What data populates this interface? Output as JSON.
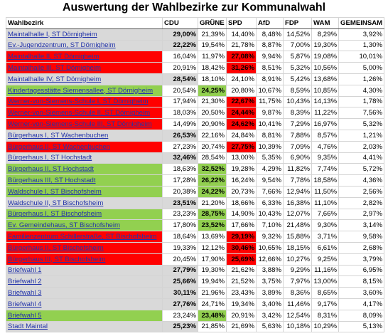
{
  "title": "Auswertung der Wahlbezirke zur Kommunalwahl",
  "table": {
    "columns": [
      "Wahlbezirk",
      "CDU",
      "GRÜNE",
      "SPD",
      "AfD",
      "FDP",
      "WAM",
      "GEMEINSAM"
    ],
    "party_colors": {
      "CDU": "#d9d9d9",
      "GRÜNE": "#92d050",
      "SPD": "#ff0000"
    },
    "rows": [
      [
        "Maintalhalle I, ST Dörnigheim",
        "29,00%",
        "21,39%",
        "14,40%",
        "8,48%",
        "14,52%",
        "8,29%",
        "3,92%"
      ],
      [
        "Ev.-Jugendzentrum, ST Dörnigheim",
        "22,22%",
        "19,54%",
        "21,78%",
        "8,87%",
        "7,00%",
        "19,30%",
        "1,30%"
      ],
      [
        "Maintalhalle II, ST Dörnigheim",
        "16,04%",
        "11,97%",
        "27,08%",
        "9,94%",
        "5,87%",
        "19,08%",
        "10,01%"
      ],
      [
        "Maintalhalle III, ST Dörnigheim",
        "20,91%",
        "18,42%",
        "31,26%",
        "8,51%",
        "5,32%",
        "10,56%",
        "5,00%"
      ],
      [
        "Maintalhalle IV, ST Dörnigheim",
        "28,54%",
        "18,10%",
        "24,10%",
        "8,91%",
        "5,42%",
        "13,68%",
        "1,26%"
      ],
      [
        "Kindertagesstätte Siemensallee, ST Dörnigheim",
        "20,54%",
        "24,25%",
        "20,80%",
        "10,67%",
        "8,59%",
        "10,85%",
        "4,30%"
      ],
      [
        "Werner-von-Siemens-Schule I, ST Dörnigheim",
        "17,94%",
        "21,30%",
        "22,67%",
        "11,75%",
        "10,43%",
        "14,13%",
        "1,78%"
      ],
      [
        "Werner-von-Siemens-Schule II, ST Dörnigheim",
        "18,03%",
        "20,50%",
        "24,44%",
        "9,87%",
        "8,39%",
        "11,22%",
        "7,56%"
      ],
      [
        "Werner-von-Siemens-Schule III, ST Dörnigheim",
        "14,49%",
        "20,90%",
        "24,62%",
        "10,41%",
        "7,29%",
        "16,97%",
        "5,32%"
      ],
      [
        "Bürgerhaus I, ST Wachenbuchen",
        "26,53%",
        "22,16%",
        "24,84%",
        "8,81%",
        "7,88%",
        "8,57%",
        "1,21%"
      ],
      [
        "Bürgerhaus II, ST Wachenbuchen",
        "27,23%",
        "20,74%",
        "27,75%",
        "10,39%",
        "7,09%",
        "4,76%",
        "2,03%"
      ],
      [
        "Bürgerhaus I, ST Hochstadt",
        "32,46%",
        "28,54%",
        "13,00%",
        "5,35%",
        "6,90%",
        "9,35%",
        "4,41%"
      ],
      [
        "Bürgerhaus II, ST Hochstadt",
        "18,63%",
        "32,52%",
        "19,28%",
        "4,29%",
        "11,82%",
        "7,74%",
        "5,72%"
      ],
      [
        "Bürgerhaus III, ST Hochstadt",
        "17,28%",
        "26,22%",
        "16,24%",
        "9,54%",
        "7,78%",
        "18,58%",
        "4,36%"
      ],
      [
        "Waldschule I, ST Bischofsheim",
        "20,38%",
        "24,22%",
        "20,73%",
        "7,66%",
        "12,94%",
        "11,50%",
        "2,56%"
      ],
      [
        "Waldschule II, ST Bischofsheim",
        "23,51%",
        "21,20%",
        "18,66%",
        "6,33%",
        "16,38%",
        "11,10%",
        "2,82%"
      ],
      [
        "Bürgerhaus I, ST Bischofsheim",
        "23,23%",
        "28,75%",
        "14,90%",
        "10,43%",
        "12,07%",
        "7,66%",
        "2,97%"
      ],
      [
        "Ev. Gemeindehaus, ST Bischofsheim",
        "17,80%",
        "23,52%",
        "17,66%",
        "7,10%",
        "21,48%",
        "9,30%",
        "3,14%"
      ],
      [
        "Familienzentrum Schillerstraße, ST Bischofsheim",
        "18,64%",
        "13,69%",
        "29,19%",
        "9,32%",
        "15,88%",
        "3,71%",
        "9,58%"
      ],
      [
        "Bürgerhaus II, ST Bischofsheim",
        "19,33%",
        "12,12%",
        "30,46%",
        "10,65%",
        "18,15%",
        "6,61%",
        "2,68%"
      ],
      [
        "Bürgerhaus III, ST Bischofsheim",
        "20,45%",
        "17,90%",
        "25,69%",
        "12,66%",
        "10,27%",
        "9,25%",
        "3,79%"
      ],
      [
        "Briefwahl 1",
        "27,79%",
        "19,30%",
        "21,62%",
        "3,88%",
        "9,29%",
        "11,16%",
        "6,95%"
      ],
      [
        "Briefwahl 2",
        "25,66%",
        "19,94%",
        "21,52%",
        "3,75%",
        "7,97%",
        "13,00%",
        "8,15%"
      ],
      [
        "Briefwahl 3",
        "30,11%",
        "21,96%",
        "23,43%",
        "3,89%",
        "8,36%",
        "8,65%",
        "3,60%"
      ],
      [
        "Briefwahl 4",
        "27,76%",
        "24,71%",
        "19,34%",
        "3,40%",
        "11,46%",
        "9,17%",
        "4,17%"
      ],
      [
        "Briefwahl 5",
        "23,24%",
        "23,48%",
        "20,91%",
        "3,42%",
        "12,54%",
        "8,31%",
        "8,09%"
      ],
      [
        "Stadt Maintal",
        "25,23%",
        "21,85%",
        "21,69%",
        "5,63%",
        "10,18%",
        "10,29%",
        "5,13%"
      ]
    ]
  }
}
